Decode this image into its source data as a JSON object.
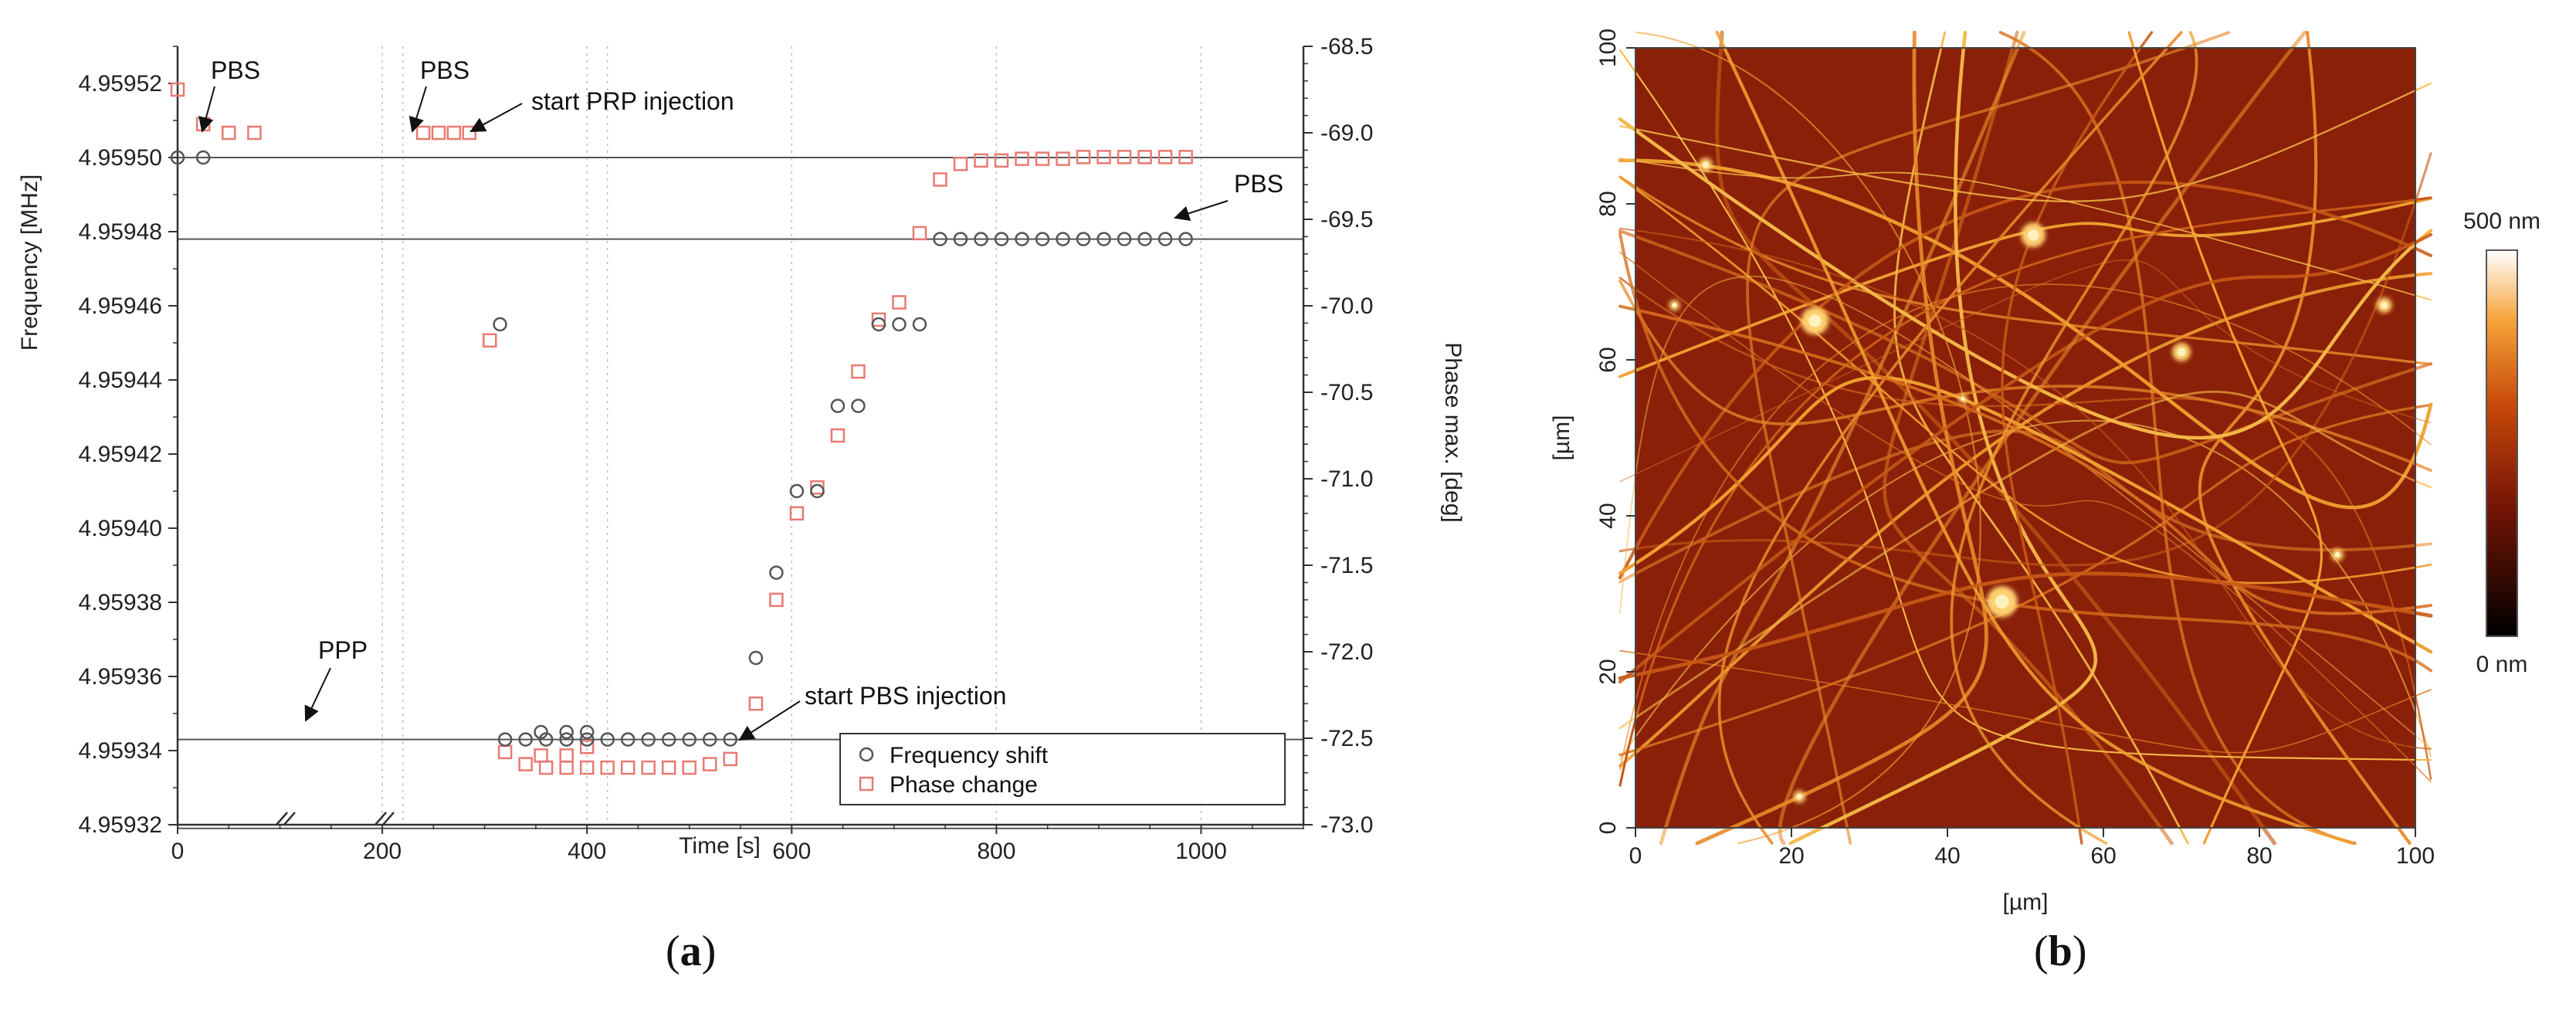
{
  "panel_labels": {
    "a": {
      "open": "(",
      "letter": "a",
      "close": ")"
    },
    "b": {
      "open": "(",
      "letter": "b",
      "close": ")"
    }
  },
  "colors": {
    "frequency": "#555555",
    "phase": "#e87a72",
    "axis": "#333333",
    "grid": "#bbbbbb"
  },
  "chart_data": [
    {
      "type": "scatter",
      "title": "",
      "xlabel": "Time [s]",
      "ylabel": "Frequency [MHz]",
      "y2label": "Phase max. [deg]",
      "xlim": [
        0,
        1100
      ],
      "ylim": [
        4.95932,
        4.95953
      ],
      "y2lim": [
        -73.0,
        -68.5
      ],
      "xticks": [
        "0",
        "200",
        "400",
        "600",
        "800",
        "1000"
      ],
      "yticks": [
        "4.95932",
        "4.95934",
        "4.95936",
        "4.95938",
        "4.95940",
        "4.95942",
        "4.95944",
        "4.95946",
        "4.95948",
        "4.95950",
        "4.95952"
      ],
      "y2ticks": [
        "-73.0",
        "-72.5",
        "-72.0",
        "-71.5",
        "-71.0",
        "-70.5",
        "-70.0",
        "-69.5",
        "-69.0",
        "-68.5"
      ],
      "grid": true,
      "reference_lines_y": [
        4.9595,
        4.959478,
        4.959343,
        4.959319
      ],
      "axis_breaks_x": [
        220,
        420
      ],
      "legend_position": "bottom-right",
      "series": [
        {
          "name": "Frequency shift",
          "marker": "circle",
          "axis": "left",
          "x": [
            0,
            25,
            315,
            355,
            380,
            400,
            320,
            340,
            360,
            380,
            400,
            420,
            440,
            460,
            480,
            500,
            520,
            540,
            565,
            585,
            605,
            625,
            645,
            665,
            685,
            705,
            725,
            745,
            765,
            785,
            805,
            825,
            845,
            865,
            885,
            905,
            925,
            945,
            965,
            985
          ],
          "values": [
            4.9595,
            4.9595,
            4.959455,
            4.959345,
            4.959345,
            4.959345,
            4.959343,
            4.959343,
            4.959343,
            4.959343,
            4.959343,
            4.959343,
            4.959343,
            4.959343,
            4.959343,
            4.959343,
            4.959343,
            4.959343,
            4.959365,
            4.959388,
            4.95941,
            4.95941,
            4.959433,
            4.959433,
            4.959455,
            4.959455,
            4.959455,
            4.959478,
            4.959478,
            4.959478,
            4.959478,
            4.959478,
            4.959478,
            4.959478,
            4.959478,
            4.959478,
            4.959478,
            4.959478,
            4.959478,
            4.959478
          ]
        },
        {
          "name": "Phase change",
          "marker": "square",
          "axis": "right",
          "x": [
            0,
            25,
            50,
            75,
            305,
            240,
            255,
            270,
            285,
            355,
            380,
            400,
            320,
            340,
            360,
            380,
            400,
            420,
            440,
            460,
            480,
            500,
            520,
            540,
            565,
            585,
            605,
            625,
            645,
            665,
            685,
            705,
            725,
            745,
            765,
            785,
            805,
            825,
            845,
            865,
            885,
            905,
            925,
            945,
            965,
            985
          ],
          "values": [
            -68.75,
            -68.95,
            -69.0,
            -69.0,
            -70.2,
            -69.0,
            -69.0,
            -69.0,
            -69.0,
            -72.6,
            -72.6,
            -72.55,
            -72.58,
            -72.65,
            -72.67,
            -72.67,
            -72.67,
            -72.67,
            -72.67,
            -72.67,
            -72.67,
            -72.67,
            -72.65,
            -72.62,
            -72.3,
            -71.7,
            -71.2,
            -71.05,
            -70.75,
            -70.38,
            -70.08,
            -69.98,
            -69.58,
            -69.27,
            -69.18,
            -69.16,
            -69.16,
            -69.15,
            -69.15,
            -69.15,
            -69.14,
            -69.14,
            -69.14,
            -69.14,
            -69.14,
            -69.14
          ]
        }
      ],
      "annotations": [
        {
          "text": "PBS"
        },
        {
          "text": "PBS"
        },
        {
          "text": "start PRP injection"
        },
        {
          "text": "PBS"
        },
        {
          "text": "PPP"
        },
        {
          "text": "start PBS injection"
        }
      ]
    },
    {
      "type": "heatmap",
      "title": "",
      "xlabel": "[µm]",
      "ylabel": "[µm]",
      "xlim": [
        0,
        100
      ],
      "ylim": [
        0,
        100
      ],
      "xticks": [
        "0",
        "20",
        "40",
        "60",
        "80",
        "100"
      ],
      "yticks": [
        "0",
        "20",
        "40",
        "60",
        "80",
        "100"
      ],
      "colorbar": {
        "max_label": "500 nm",
        "min_label": "0 nm",
        "range_nm": [
          0,
          500
        ]
      },
      "description_colormap": [
        "#000000",
        "#7a1606",
        "#c84a0a",
        "#f6a43a",
        "#ffffff"
      ]
    }
  ]
}
